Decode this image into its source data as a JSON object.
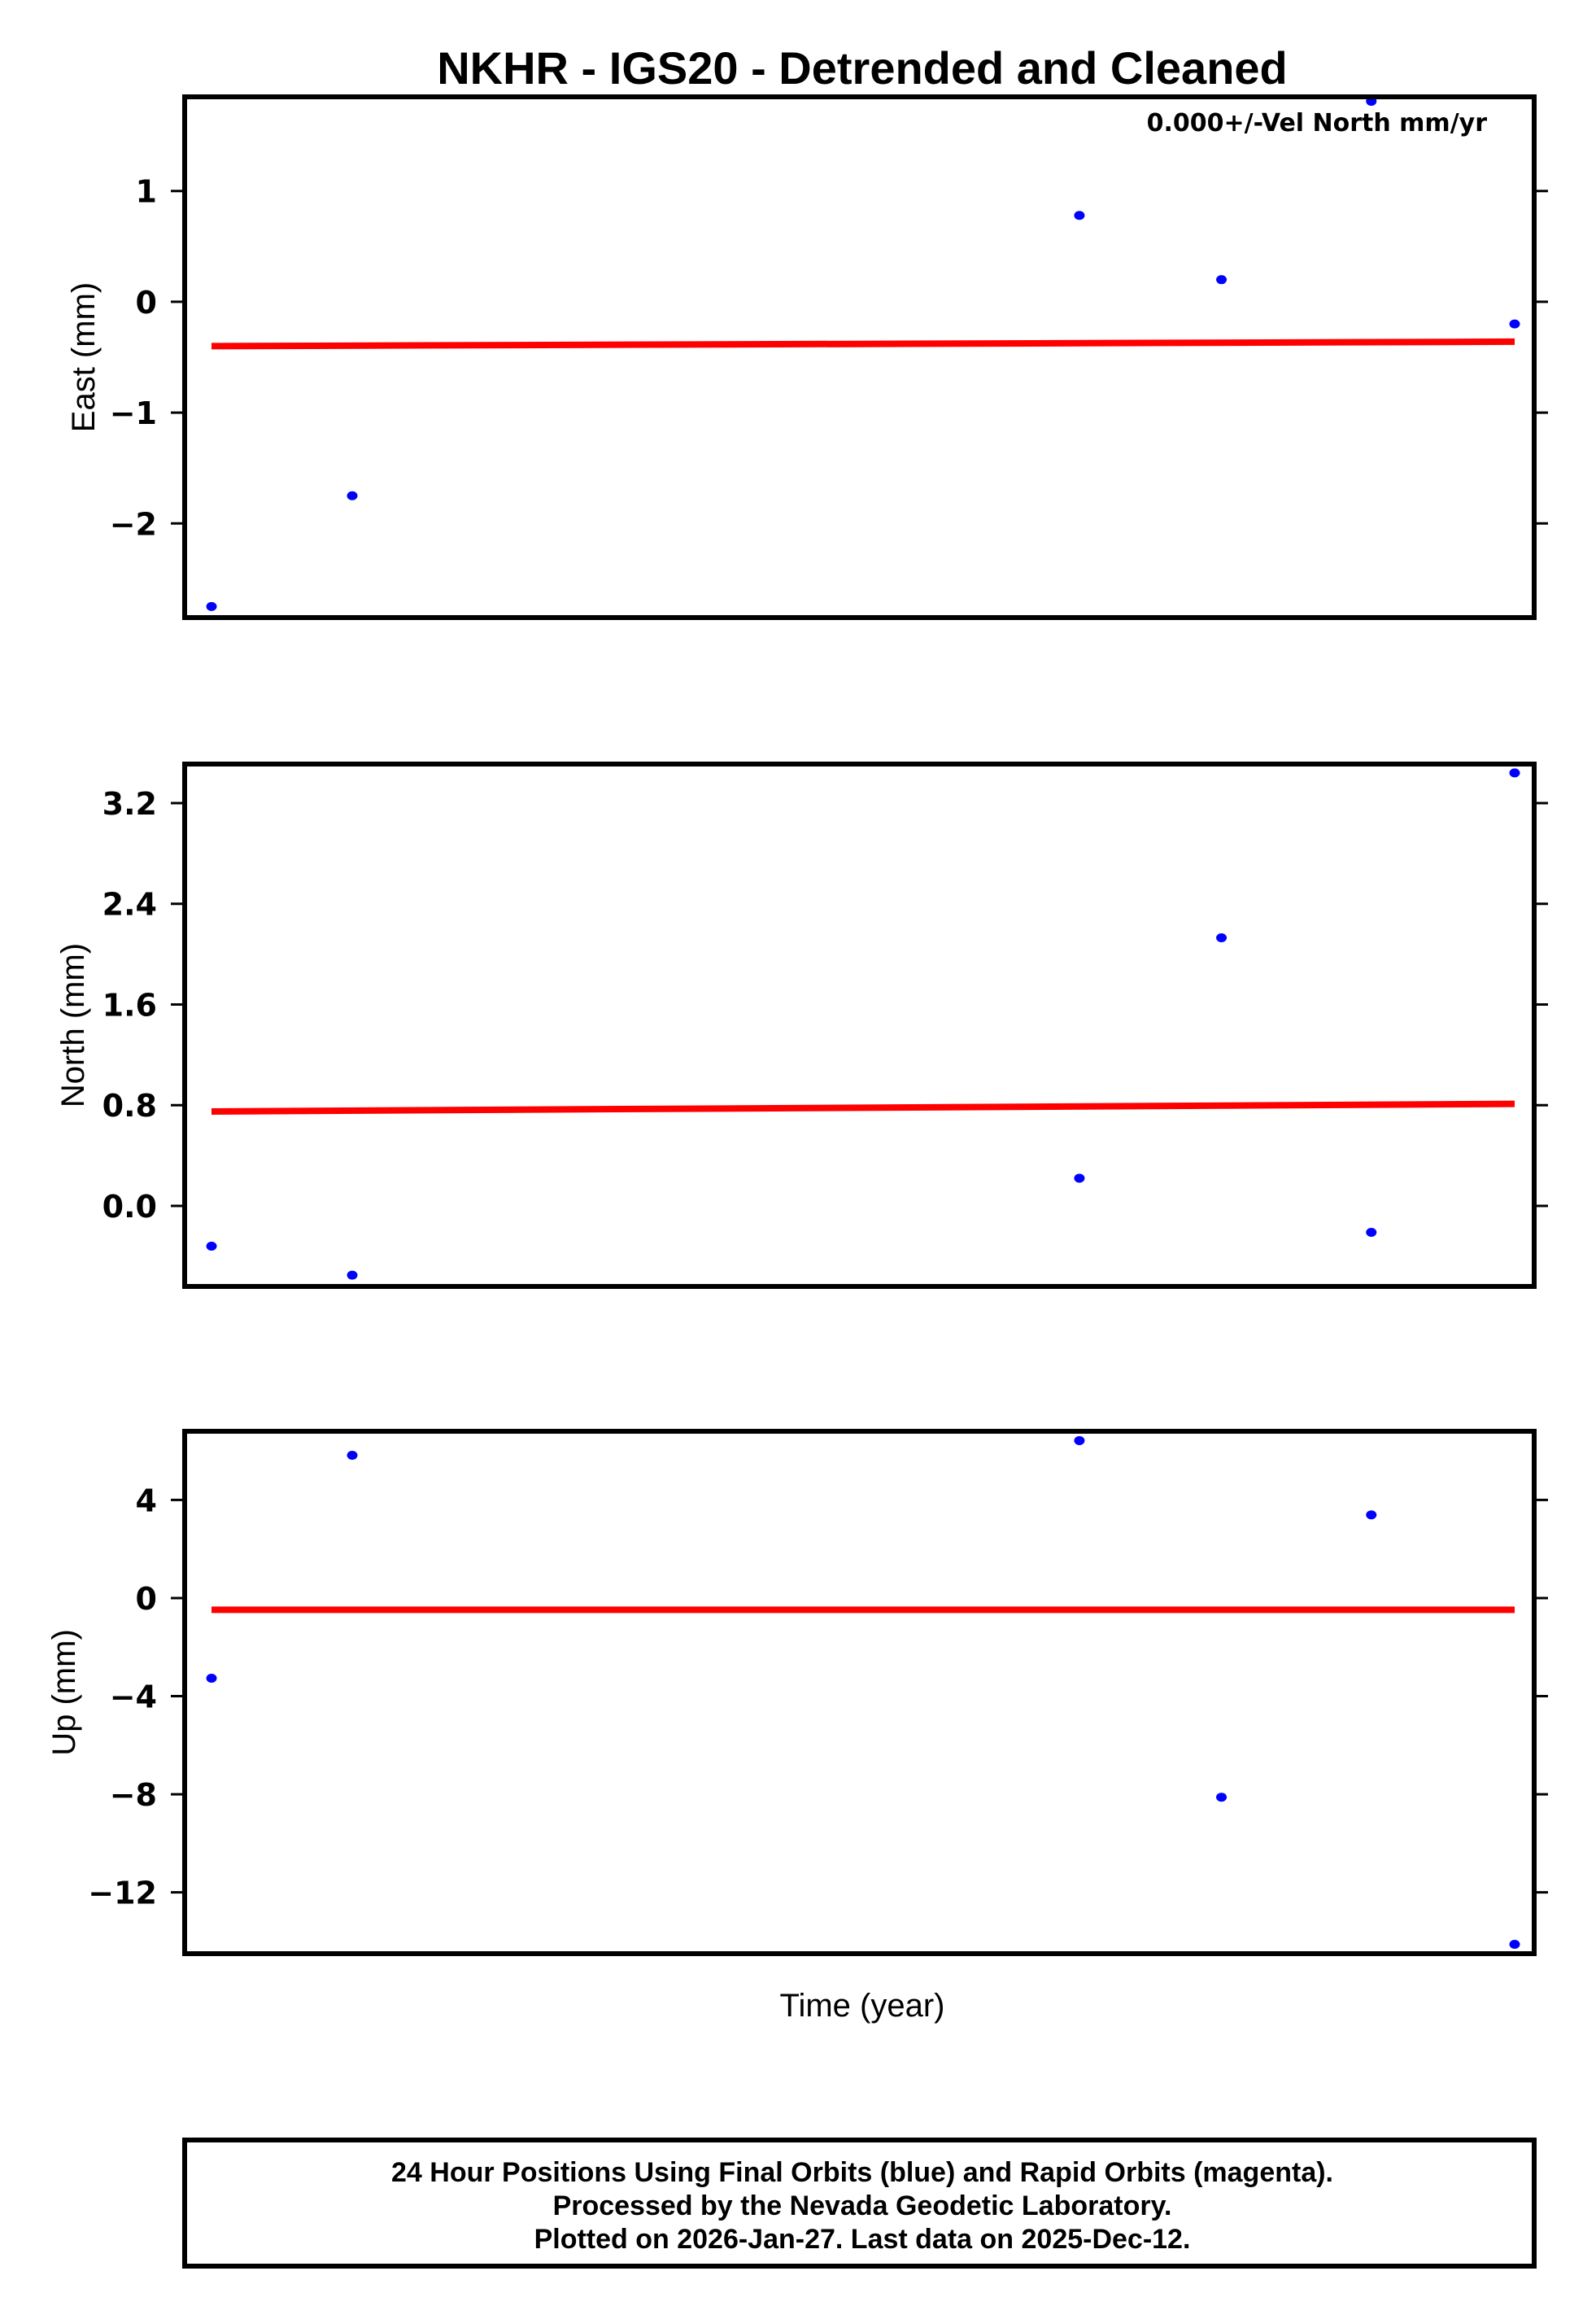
{
  "title": "NKHR - IGS20 - Detrended and Cleaned",
  "annotation": "0.000+/-Vel North mm/yr",
  "x_axis_label": "Time (year)",
  "footer": {
    "line1": "24 Hour Positions Using Final Orbits (blue) and Rapid Orbits (magenta).",
    "line2": "Processed by the Nevada Geodetic Laboratory.",
    "line3": "Plotted on 2026-Jan-27. Last data on 2025-Dec-12."
  },
  "colors": {
    "points": "#0000ff",
    "fit_line": "#ff0000",
    "frame": "#000000"
  },
  "panels": [
    {
      "ylabel": "East (mm)",
      "ticks": [
        "1",
        "0",
        "−1",
        "−2"
      ]
    },
    {
      "ylabel": "North (mm)",
      "ticks": [
        "3.2",
        "2.4",
        "1.6",
        "0.8",
        "0.0"
      ]
    },
    {
      "ylabel": "Up (mm)",
      "ticks": [
        "4",
        "0",
        "−4",
        "−8",
        "−12"
      ]
    }
  ],
  "chart_data": [
    {
      "type": "scatter",
      "title": "NKHR - IGS20 - Detrended and Cleaned",
      "xlabel": "",
      "ylabel": "East (mm)",
      "x_index": [
        0,
        1,
        2,
        3,
        4,
        5
      ],
      "x_relative": [
        0.0,
        0.108,
        0.666,
        0.775,
        0.89,
        1.0
      ],
      "values": [
        -2.75,
        -1.75,
        0.78,
        0.2,
        1.81,
        -0.2
      ],
      "fit_line": {
        "start": -0.4,
        "end": -0.36
      },
      "yticks": [
        1,
        0,
        -1,
        -2
      ],
      "ylim": [
        -2.85,
        1.85
      ],
      "annotation": "0.000+/-Vel North mm/yr",
      "grid": false,
      "legend": null
    },
    {
      "type": "scatter",
      "xlabel": "",
      "ylabel": "North (mm)",
      "x_index": [
        0,
        1,
        2,
        3,
        4,
        5
      ],
      "x_relative": [
        0.0,
        0.108,
        0.666,
        0.775,
        0.89,
        1.0
      ],
      "values": [
        -0.32,
        -0.55,
        0.22,
        2.13,
        -0.21,
        3.44
      ],
      "fit_line": {
        "start": 0.75,
        "end": 0.81
      },
      "yticks": [
        3.2,
        2.4,
        1.6,
        0.8,
        0.0
      ],
      "ylim": [
        -0.64,
        3.51
      ],
      "grid": false,
      "legend": null
    },
    {
      "type": "scatter",
      "xlabel": "Time (year)",
      "ylabel": "Up (mm)",
      "x_index": [
        0,
        1,
        2,
        3,
        4,
        5
      ],
      "x_relative": [
        0.0,
        0.108,
        0.666,
        0.775,
        0.89,
        1.0
      ],
      "values": [
        -3.27,
        5.82,
        6.42,
        -8.12,
        3.39,
        -14.12
      ],
      "fit_line": {
        "start": -0.48,
        "end": -0.48
      },
      "yticks": [
        4,
        0,
        -4,
        -8,
        -12
      ],
      "ylim": [
        -14.5,
        6.8
      ],
      "grid": false,
      "legend": null
    }
  ]
}
